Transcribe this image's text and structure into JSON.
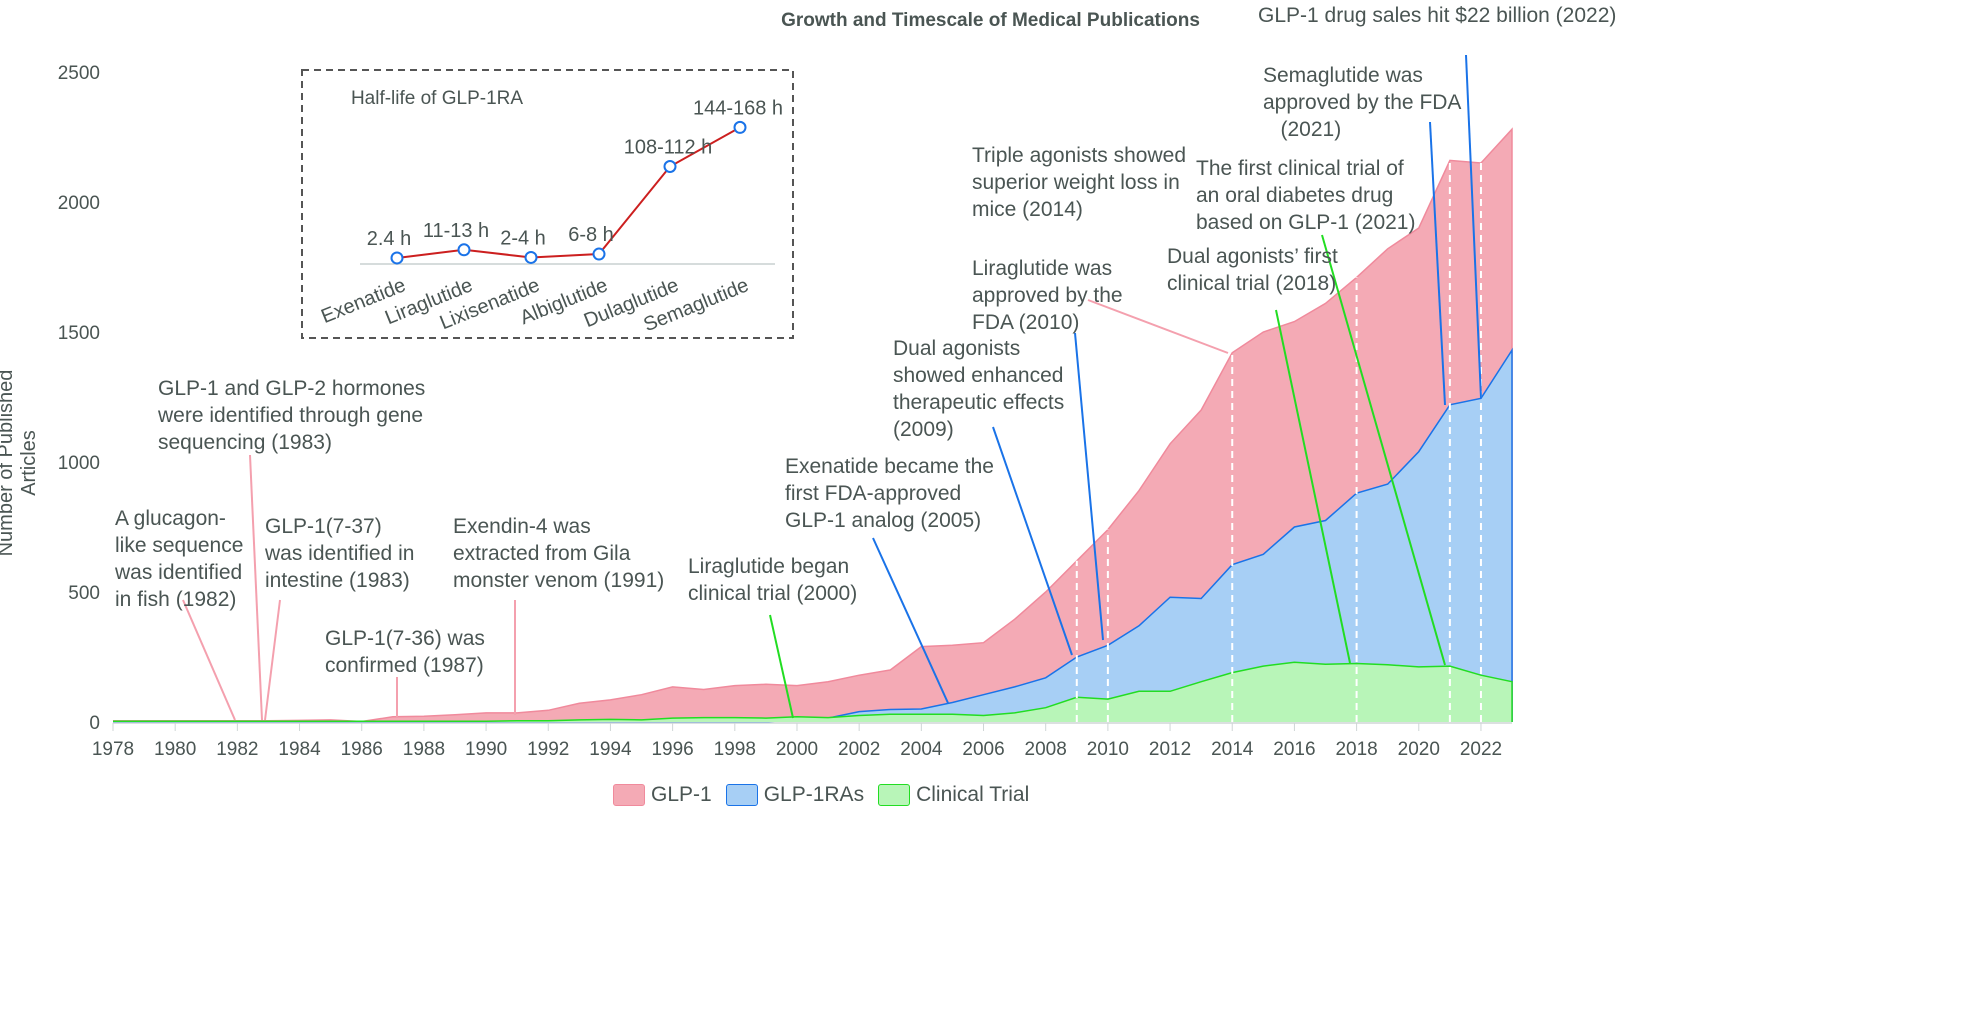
{
  "chart_data": {
    "type": "area",
    "title": "Growth and Timescale of Medical Publications",
    "xlabel": "",
    "ylabel": "Number of Published Articles",
    "xlim": [
      1978,
      2023
    ],
    "ylim": [
      0,
      2500
    ],
    "x_ticks": [
      "1978",
      "1980",
      "1982",
      "1984",
      "1986",
      "1988",
      "1990",
      "1992",
      "1994",
      "1996",
      "1998",
      "2000",
      "2002",
      "2004",
      "2006",
      "2008",
      "2010",
      "2012",
      "2014",
      "2016",
      "2018",
      "2020",
      "2022"
    ],
    "y_ticks": [
      "0",
      "500",
      "1000",
      "1500",
      "2000",
      "2500"
    ],
    "legend_position": "bottom",
    "x": [
      1978,
      1979,
      1980,
      1981,
      1982,
      1983,
      1984,
      1985,
      1986,
      1987,
      1988,
      1989,
      1990,
      1991,
      1992,
      1993,
      1994,
      1995,
      1996,
      1997,
      1998,
      1999,
      2000,
      2001,
      2002,
      2003,
      2004,
      2005,
      2006,
      2007,
      2008,
      2009,
      2010,
      2011,
      2012,
      2013,
      2014,
      2015,
      2016,
      2017,
      2018,
      2019,
      2020,
      2021,
      2022,
      2023
    ],
    "series": [
      {
        "name": "GLP-1",
        "color": "#f4aab5",
        "stroke": "#f08a9c",
        "values": [
          5,
          5,
          5,
          5,
          5,
          5,
          6,
          8,
          2,
          20,
          22,
          28,
          35,
          35,
          45,
          72,
          85,
          105,
          135,
          125,
          140,
          145,
          140,
          155,
          180,
          200,
          290,
          295,
          305,
          395,
          500,
          620,
          740,
          890,
          1070,
          1200,
          1420,
          1500,
          1540,
          1610,
          1710,
          1820,
          1900,
          2160,
          2150,
          2280
        ]
      },
      {
        "name": "GLP-1RAs",
        "color": "#a7cff5",
        "stroke": "#1a73e8",
        "values": [
          0,
          0,
          0,
          0,
          0,
          0,
          0,
          0,
          0,
          0,
          0,
          0,
          0,
          0,
          0,
          0,
          0,
          0,
          0,
          0,
          0,
          0,
          10,
          15,
          40,
          48,
          50,
          75,
          105,
          135,
          170,
          250,
          295,
          370,
          480,
          475,
          605,
          645,
          750,
          775,
          880,
          915,
          1040,
          1220,
          1245,
          1430
        ]
      },
      {
        "name": "Clinical Trial",
        "color": "#b8f5b8",
        "stroke": "#22dd22",
        "values": [
          3,
          3,
          3,
          3,
          3,
          3,
          3,
          3,
          3,
          3,
          3,
          3,
          3,
          5,
          5,
          8,
          10,
          8,
          15,
          17,
          17,
          15,
          20,
          17,
          25,
          30,
          30,
          30,
          25,
          35,
          55,
          95,
          88,
          118,
          118,
          155,
          190,
          215,
          230,
          222,
          225,
          220,
          212,
          215,
          180,
          155
        ]
      }
    ],
    "milestone_years": [
      2009,
      2010,
      2014,
      2018,
      2021,
      2022
    ],
    "annotations": [
      {
        "lines": [
          "A glucagon-",
          "like sequence",
          "was identified",
          "in fish (1982)"
        ],
        "color": "#f4a0ae"
      },
      {
        "lines": [
          "GLP-1 and GLP-2 hormones",
          "were identified through gene",
          "sequencing (1983)"
        ],
        "color": "#f4a0ae"
      },
      {
        "lines": [
          "GLP-1(7-37)",
          "was identified in",
          "intestine (1983)"
        ],
        "color": "#f4a0ae"
      },
      {
        "lines": [
          "GLP-1(7-36) was",
          "confirmed (1987)"
        ],
        "color": "#f4a0ae"
      },
      {
        "lines": [
          "Exendin-4 was",
          "extracted from Gila",
          "monster venom (1991)"
        ],
        "color": "#f4a0ae"
      },
      {
        "lines": [
          "Liraglutide began",
          "clinical trial (2000)"
        ],
        "color": "#22dd22"
      },
      {
        "lines": [
          "Exenatide became the",
          "first FDA-approved",
          "GLP-1 analog (2005)"
        ],
        "color": "#1a73e8"
      },
      {
        "lines": [
          "Dual agonists",
          "showed enhanced",
          "therapeutic effects",
          "(2009)"
        ],
        "color": "#1a73e8"
      },
      {
        "lines": [
          "Liraglutide was",
          "approved by the",
          "FDA (2010)"
        ],
        "color": "#1a73e8"
      },
      {
        "lines": [
          "Triple agonists showed",
          "superior weight loss in",
          "mice (2014)"
        ],
        "color": "#f4a0ae"
      },
      {
        "lines": [
          "Dual agonists’ first",
          "clinical trial (2018)"
        ],
        "color": "#22dd22"
      },
      {
        "lines": [
          "The first clinical trial of",
          "an oral diabetes drug",
          "based on GLP-1 (2021)"
        ],
        "color": "#22dd22"
      },
      {
        "lines": [
          "Semaglutide was",
          "approved by the FDA",
          "   (2021)"
        ],
        "color": "#1a73e8"
      },
      {
        "lines": [
          "GLP-1 drug sales hit $22 billion (2022)"
        ],
        "color": "#1a73e8"
      }
    ],
    "inset": {
      "type": "line",
      "title": "Half-life of GLP-1RA",
      "color": "#cc1f1f",
      "marker_color": "#1a73e8",
      "categories": [
        "Exenatide",
        "Liraglutide",
        "Lixisenatide",
        "Albiglutide",
        "Dulaglutide",
        "Semaglutide"
      ],
      "labels": [
        "2.4 h",
        "11-13 h",
        "2-4 h",
        "6-8 h",
        "108-112 h",
        "144-168 h"
      ],
      "values_hours": [
        2.4,
        12,
        3,
        7,
        110,
        156
      ]
    }
  }
}
